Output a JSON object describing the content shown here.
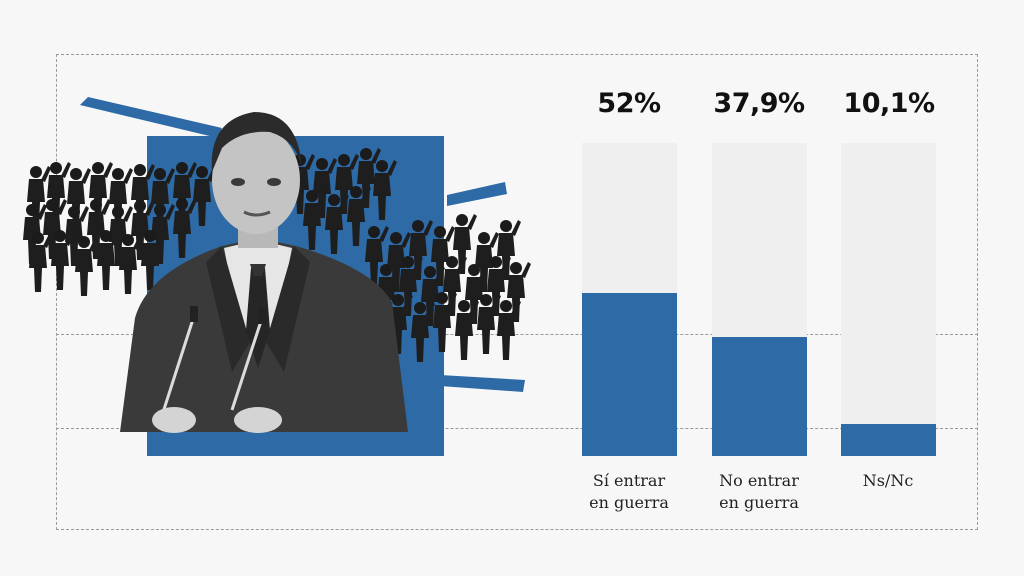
{
  "colors": {
    "accent": "#2e6aa6",
    "track": "#efefef",
    "background": "#f7f7f7"
  },
  "chart_data": {
    "type": "bar",
    "categories": [
      "Sí entrar en guerra",
      "No entrar en guerra",
      "Ns/Nc"
    ],
    "values": [
      52,
      37.9,
      10.1
    ],
    "value_labels": [
      "52%",
      "37,9%",
      "10,1%"
    ],
    "ylim": [
      0,
      100
    ],
    "title": "",
    "xlabel": "",
    "ylabel": ""
  },
  "labels": {
    "cat0_line1": "Sí entrar",
    "cat0_line2": "en guerra",
    "cat1_line1": "No entrar",
    "cat1_line2": "en guerra",
    "cat2_line1": "Ns/Nc"
  }
}
